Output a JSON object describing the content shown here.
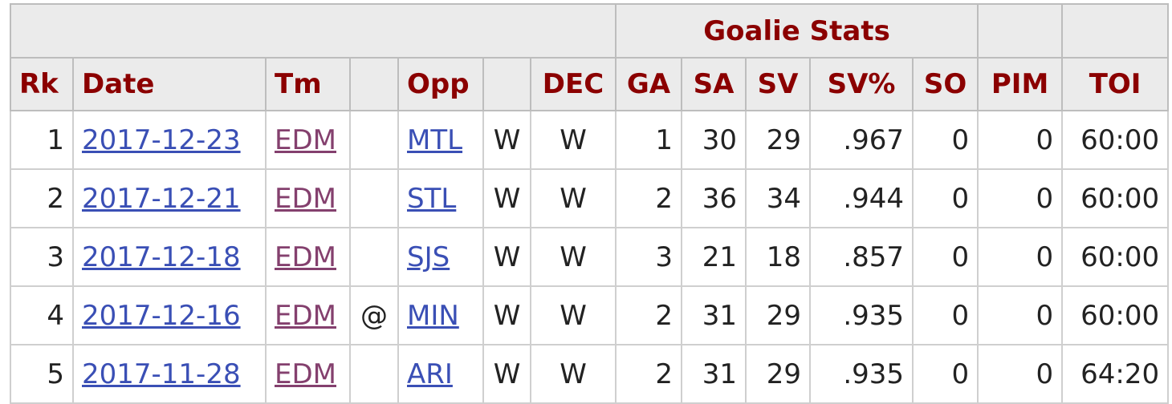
{
  "over_header": {
    "group_label": "Goalie Stats"
  },
  "columns": {
    "rk": "Rk",
    "date": "Date",
    "tm": "Tm",
    "at": "",
    "opp": "Opp",
    "result": "",
    "dec": "DEC",
    "ga": "GA",
    "sa": "SA",
    "sv": "SV",
    "svpct": "SV%",
    "so": "SO",
    "pim": "PIM",
    "toi": "TOI"
  },
  "rows": [
    {
      "rk": "1",
      "date": "2017-12-23",
      "tm": "EDM",
      "at": "",
      "opp": "MTL",
      "result": "W",
      "dec": "W",
      "ga": "1",
      "sa": "30",
      "sv": "29",
      "svpct": ".967",
      "so": "0",
      "pim": "0",
      "toi": "60:00"
    },
    {
      "rk": "2",
      "date": "2017-12-21",
      "tm": "EDM",
      "at": "",
      "opp": "STL",
      "result": "W",
      "dec": "W",
      "ga": "2",
      "sa": "36",
      "sv": "34",
      "svpct": ".944",
      "so": "0",
      "pim": "0",
      "toi": "60:00"
    },
    {
      "rk": "3",
      "date": "2017-12-18",
      "tm": "EDM",
      "at": "",
      "opp": "SJS",
      "result": "W",
      "dec": "W",
      "ga": "3",
      "sa": "21",
      "sv": "18",
      "svpct": ".857",
      "so": "0",
      "pim": "0",
      "toi": "60:00"
    },
    {
      "rk": "4",
      "date": "2017-12-16",
      "tm": "EDM",
      "at": "@",
      "opp": "MIN",
      "result": "W",
      "dec": "W",
      "ga": "2",
      "sa": "31",
      "sv": "29",
      "svpct": ".935",
      "so": "0",
      "pim": "0",
      "toi": "60:00"
    },
    {
      "rk": "5",
      "date": "2017-11-28",
      "tm": "EDM",
      "at": "",
      "opp": "ARI",
      "result": "W",
      "dec": "W",
      "ga": "2",
      "sa": "31",
      "sv": "29",
      "svpct": ".935",
      "so": "0",
      "pim": "0",
      "toi": "64:20"
    }
  ],
  "colors": {
    "header_text": "#8b0000",
    "header_bg": "#ebebeb",
    "date_link": "#3a4fb5",
    "team_link": "#84406e",
    "grid": "#cfcfcf"
  }
}
